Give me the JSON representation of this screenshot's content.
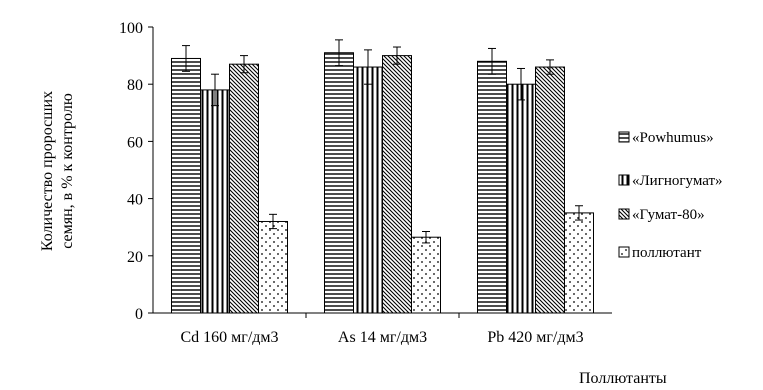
{
  "chart_data": {
    "type": "bar",
    "title": "",
    "xlabel": "Поллютанты",
    "ylabel_lines": [
      "Количество проросших",
      "семян, в % к контролю"
    ],
    "ylim": [
      0,
      100
    ],
    "yticks": [
      0,
      20,
      40,
      60,
      80,
      100
    ],
    "grid": false,
    "legend_position": "right",
    "categories": [
      "Cd 160 мг/дм3",
      "As 14 мг/дм3",
      "Pb 420 мг/дм3"
    ],
    "series": [
      {
        "name": "«Powhumus»",
        "pattern": "horizontal-lines",
        "values": [
          89,
          91,
          88
        ],
        "errors": [
          4.5,
          4.5,
          4.5
        ]
      },
      {
        "name": "«Лигногумат»",
        "pattern": "vertical-lines",
        "values": [
          78,
          86,
          80
        ],
        "errors": [
          5.5,
          6,
          5.5
        ]
      },
      {
        "name": "«Гумат-80»",
        "pattern": "diagonal-lines",
        "values": [
          87,
          90,
          86
        ],
        "errors": [
          3,
          3,
          2.5
        ]
      },
      {
        "name": "поллютант",
        "pattern": "dots",
        "values": [
          32,
          26.5,
          35
        ],
        "errors": [
          2.5,
          2,
          2.5
        ]
      }
    ]
  }
}
